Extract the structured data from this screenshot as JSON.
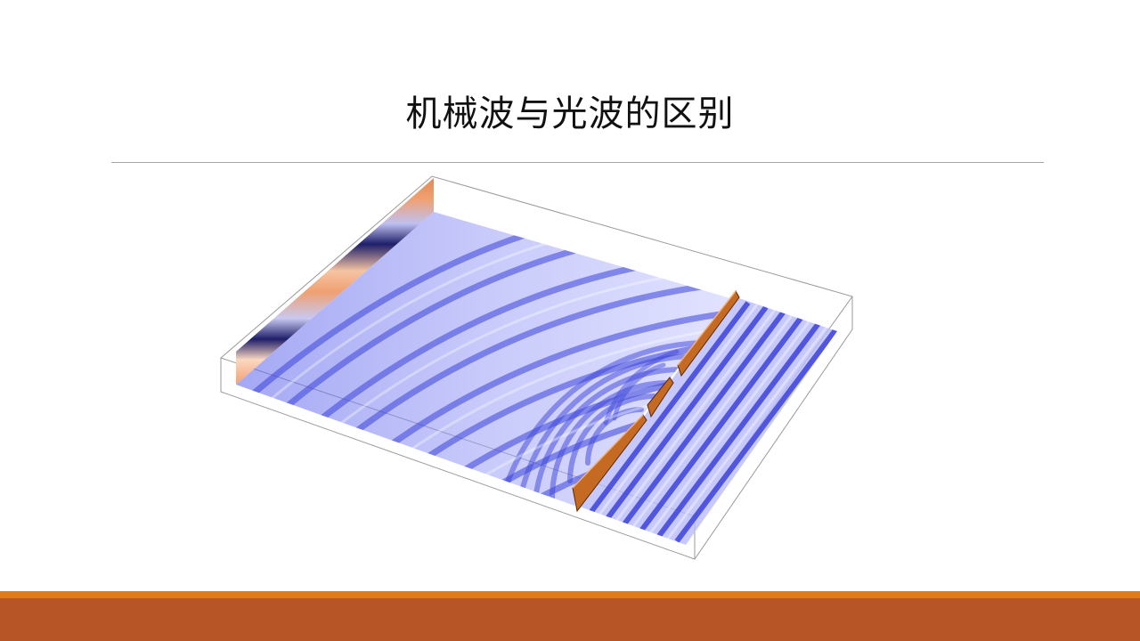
{
  "slide": {
    "title": "机械波与光波的区别"
  },
  "figure": {
    "subject": "wave-diffraction-simulation",
    "colors": {
      "wave_light": "#c7c9ff",
      "wave_mid": "#7f84f3",
      "wave_dark": "#3b43d9",
      "source_orange": "#f0a070",
      "source_navy": "#1e1e6a",
      "barrier_copper": "#c46a22"
    }
  },
  "theme": {
    "rule_color": "#a6a6a6",
    "footer_thin": "#e07b17",
    "footer_thick": "#b85526"
  }
}
